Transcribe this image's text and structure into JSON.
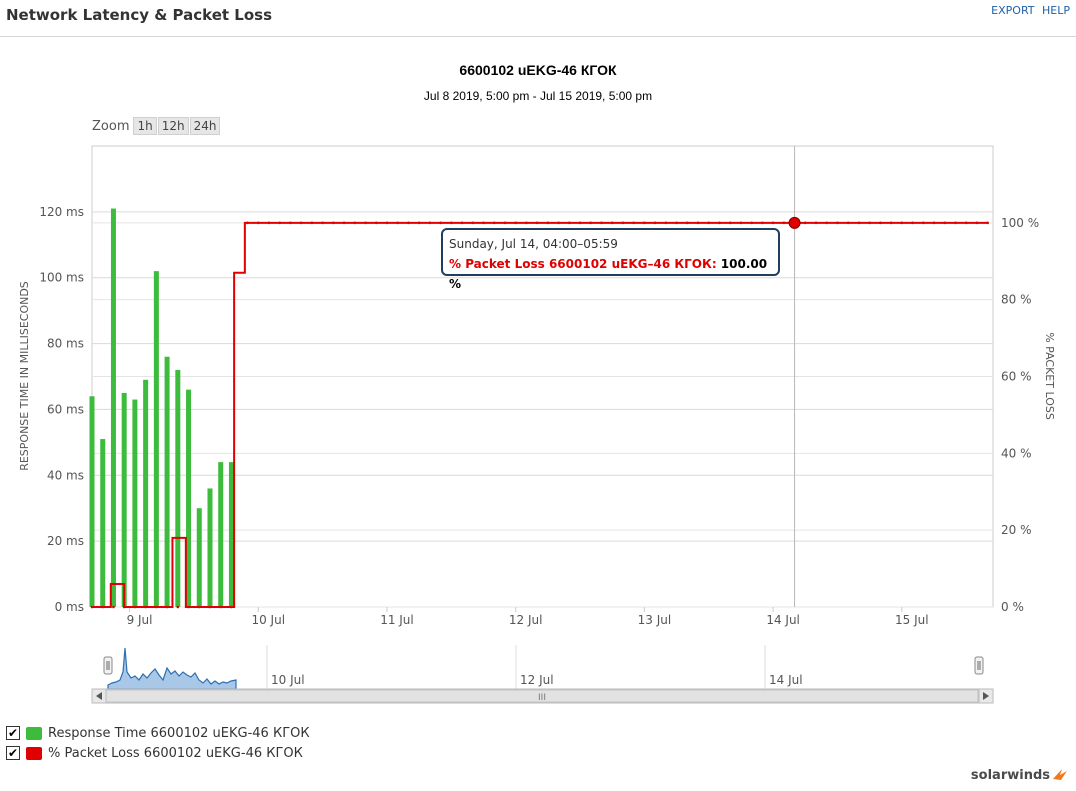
{
  "header": {
    "title": "Network Latency & Packet Loss",
    "export_label": "EXPORT",
    "help_label": "HELP"
  },
  "zoom": {
    "label": "Zoom",
    "buttons": [
      "1h",
      "12h",
      "24h"
    ]
  },
  "tooltip": {
    "time": "Sunday, Jul 14, 04:00–05:59",
    "series_label": "% Packet Loss 6600102 uEKG–46 КГОК",
    "value": "100.00 %"
  },
  "legend": [
    {
      "label": "Response Time 6600102 uEKG-46 КГОК",
      "color": "#3dbb3d",
      "checked": true
    },
    {
      "label": "% Packet Loss 6600102 uEKG-46 КГОК",
      "color": "#e00000",
      "checked": true
    }
  ],
  "navigator": {
    "labels": [
      "10 Jul",
      "12 Jul",
      "14 Jul"
    ],
    "scroll_grip": "III"
  },
  "brand": "solarwinds",
  "chart_data": {
    "type": "bar+line",
    "title": "6600102 uEKG-46 КГОК",
    "subtitle": "Jul 8 2019, 5:00 pm - Jul 15 2019, 5:00 pm",
    "x_range_hours": [
      0,
      168
    ],
    "x_ticks": [
      {
        "label": "9 Jul",
        "hour": 7
      },
      {
        "label": "10 Jul",
        "hour": 31
      },
      {
        "label": "11 Jul",
        "hour": 55
      },
      {
        "label": "12 Jul",
        "hour": 79
      },
      {
        "label": "13 Jul",
        "hour": 103
      },
      {
        "label": "14 Jul",
        "hour": 127
      },
      {
        "label": "15 Jul",
        "hour": 151
      }
    ],
    "y_left": {
      "label": "RESPONSE TIME IN MILLISECONDS",
      "ticks": [
        "0 ms",
        "20 ms",
        "40 ms",
        "60 ms",
        "80 ms",
        "100 ms",
        "120 ms"
      ],
      "range": [
        0,
        140
      ]
    },
    "y_right": {
      "label": "% PACKET LOSS",
      "ticks": [
        "0 %",
        "20 %",
        "40 %",
        "60 %",
        "80 %",
        "100 %"
      ],
      "range": [
        0,
        120
      ]
    },
    "series": [
      {
        "name": "Response Time 6600102 uEKG-46 КГОК",
        "type": "bar",
        "color": "#3dbb3d",
        "points": [
          [
            0,
            64
          ],
          [
            2,
            51
          ],
          [
            4,
            121
          ],
          [
            6,
            65
          ],
          [
            8,
            63
          ],
          [
            10,
            69
          ],
          [
            12,
            102
          ],
          [
            14,
            76
          ],
          [
            16,
            72
          ],
          [
            18,
            66
          ],
          [
            20,
            30
          ],
          [
            22,
            36
          ],
          [
            24,
            44
          ],
          [
            26,
            44
          ]
        ]
      },
      {
        "name": "% Packet Loss 6600102 uEKG-46 КГОК",
        "type": "step-line",
        "color": "#e00000",
        "points": [
          [
            0,
            0
          ],
          [
            2,
            0
          ],
          [
            3.5,
            0
          ],
          [
            3.5,
            6
          ],
          [
            6,
            6
          ],
          [
            6,
            0
          ],
          [
            15,
            0
          ],
          [
            15,
            18
          ],
          [
            17.5,
            18
          ],
          [
            17.5,
            0
          ],
          [
            26.5,
            0
          ],
          [
            26.5,
            87
          ],
          [
            28.5,
            87
          ],
          [
            28.5,
            100
          ],
          [
            167,
            100
          ]
        ]
      }
    ],
    "crosshair_hour": 131,
    "highlight_point": [
      131,
      100
    ],
    "grid": true
  }
}
